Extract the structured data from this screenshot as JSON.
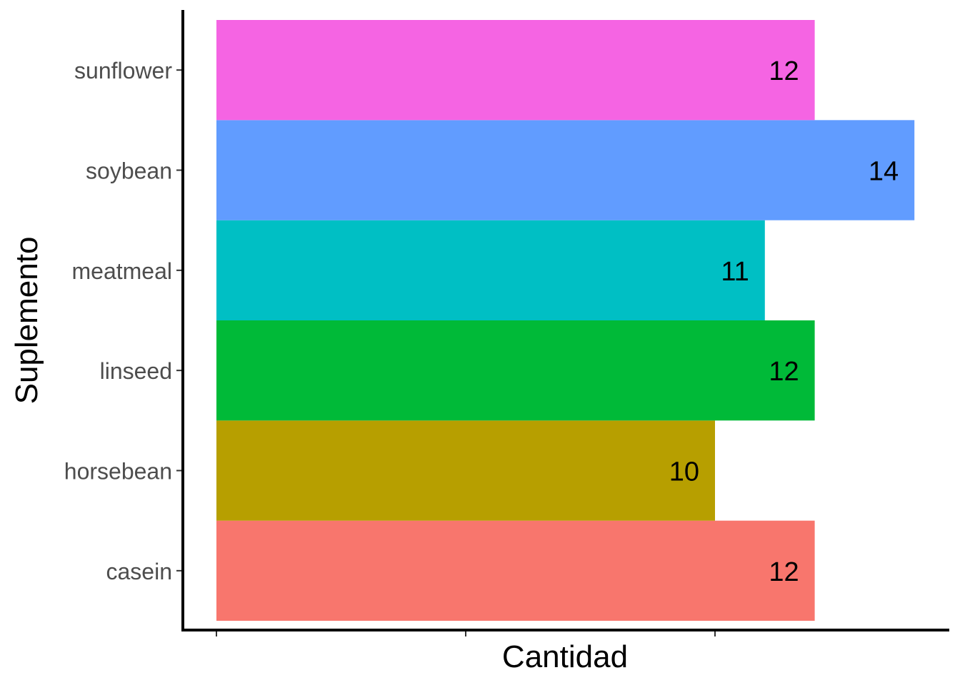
{
  "chart_data": {
    "type": "bar",
    "orientation": "horizontal",
    "title": "",
    "xlabel": "Cantidad",
    "ylabel": "Suplemento",
    "categories": [
      "casein",
      "horsebean",
      "linseed",
      "meatmeal",
      "soybean",
      "sunflower"
    ],
    "values": [
      12,
      10,
      12,
      11,
      14,
      12
    ],
    "colors": [
      "#F8766D",
      "#B79F00",
      "#00BA38",
      "#00BFC4",
      "#619CFF",
      "#F564E3"
    ],
    "xlim": [
      0,
      14.7
    ],
    "x_ticks_labeled": false,
    "grid": false,
    "legend": "none"
  }
}
